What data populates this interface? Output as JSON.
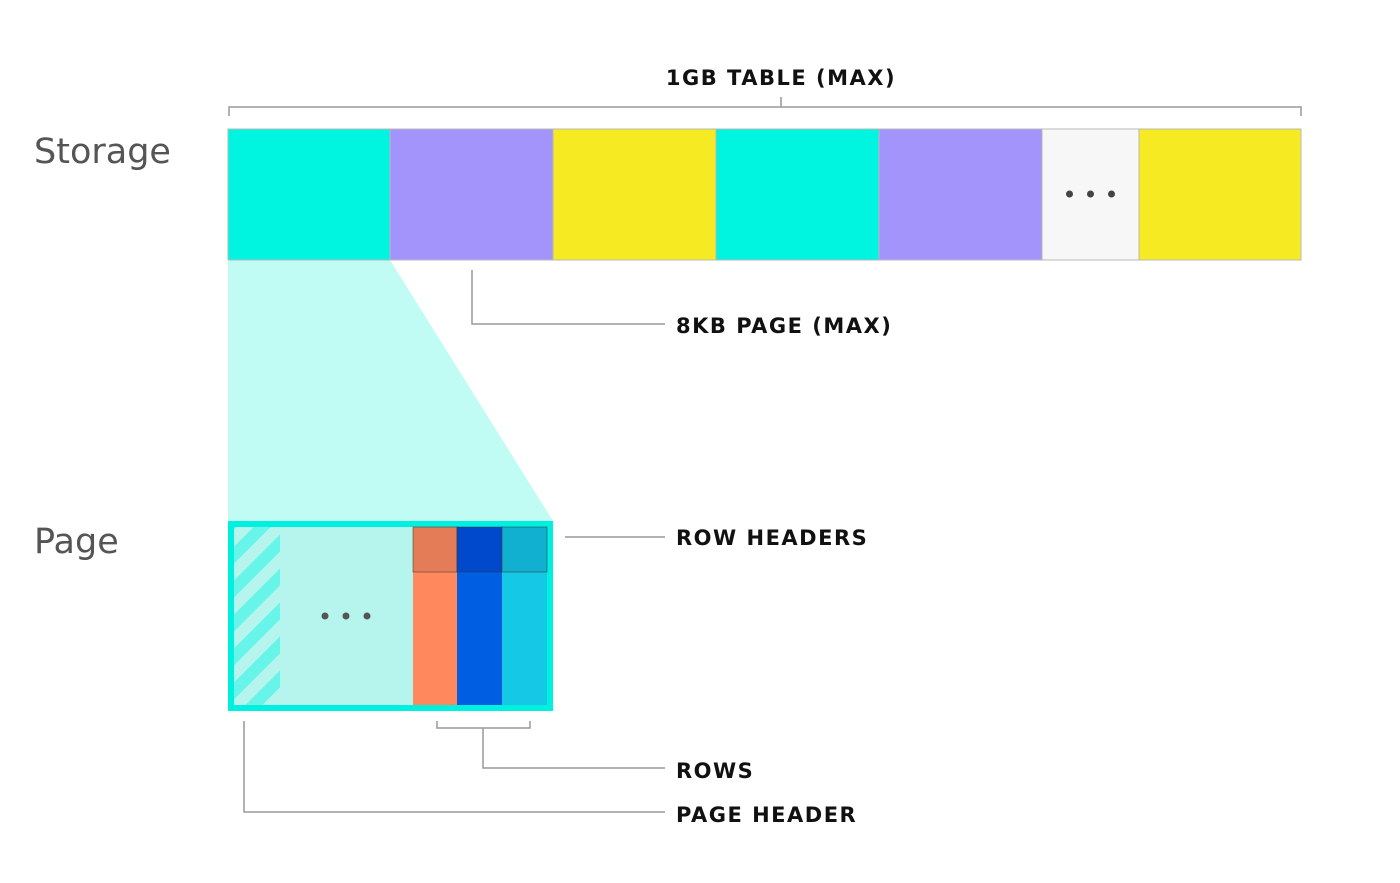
{
  "side_labels": {
    "storage": "Storage",
    "page": "Page"
  },
  "annotations": {
    "table": "1GB TABLE (MAX)",
    "page_size": "8KB PAGE (MAX)",
    "row_headers": "ROW HEADERS",
    "rows": "ROWS",
    "page_header": "PAGE HEADER"
  },
  "storage_blocks": [
    {
      "kind": "page",
      "color": "#00f5e1"
    },
    {
      "kind": "page",
      "color": "#a394fb"
    },
    {
      "kind": "page",
      "color": "#f6eb22"
    },
    {
      "kind": "page",
      "color": "#00f5e1"
    },
    {
      "kind": "page",
      "color": "#a394fb"
    },
    {
      "kind": "ellipsis",
      "color": "#f7f7f7"
    },
    {
      "kind": "page",
      "color": "#f6eb22"
    }
  ],
  "page": {
    "border_color": "#00f0e0",
    "zoom_fill": "#c0fcf4",
    "free_space_color": "#b5f5ee",
    "rows": [
      {
        "header_color": "#e57c58",
        "body_color": "#ff885c"
      },
      {
        "header_color": "#0048cc",
        "body_color": "#005ee2"
      },
      {
        "header_color": "#12b0d0",
        "body_color": "#15c8e6"
      }
    ]
  }
}
